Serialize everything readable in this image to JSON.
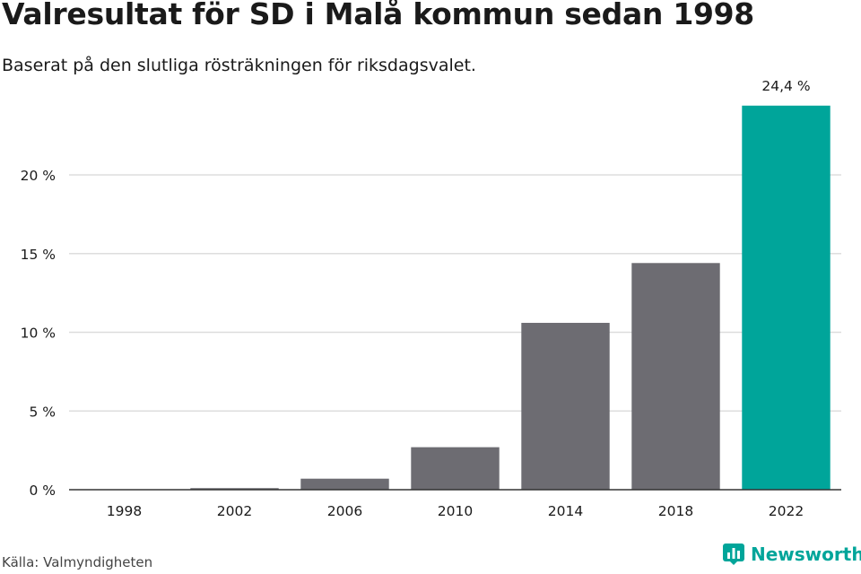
{
  "title": "Valresultat för SD i Malå kommun sedan 1998",
  "subtitle": "Baserat på den slutliga rösträkningen för riksdagsvalet.",
  "source": "Källa: Valmyndigheten",
  "logo": {
    "text": "Newsworthy",
    "icon": "newsworthy-bar-icon"
  },
  "colors": {
    "bar": "#6d6c72",
    "highlight": "#00a59a",
    "grid": "#dddddd",
    "axis": "#333333",
    "text": "#1a1a1a"
  },
  "chart_data": {
    "type": "bar",
    "categories": [
      "1998",
      "2002",
      "2006",
      "2010",
      "2014",
      "2018",
      "2022"
    ],
    "values": [
      0.0,
      0.1,
      0.7,
      2.7,
      10.6,
      14.4,
      24.4
    ],
    "highlight_index": 6,
    "data_labels": {
      "6": "24,4 %"
    },
    "yticks": [
      {
        "value": 0,
        "label": "0 %"
      },
      {
        "value": 5,
        "label": "5 %"
      },
      {
        "value": 10,
        "label": "10 %"
      },
      {
        "value": 15,
        "label": "15 %"
      },
      {
        "value": 20,
        "label": "20 %"
      }
    ],
    "ylim": [
      0,
      25
    ],
    "grid": true,
    "legend": "none"
  }
}
